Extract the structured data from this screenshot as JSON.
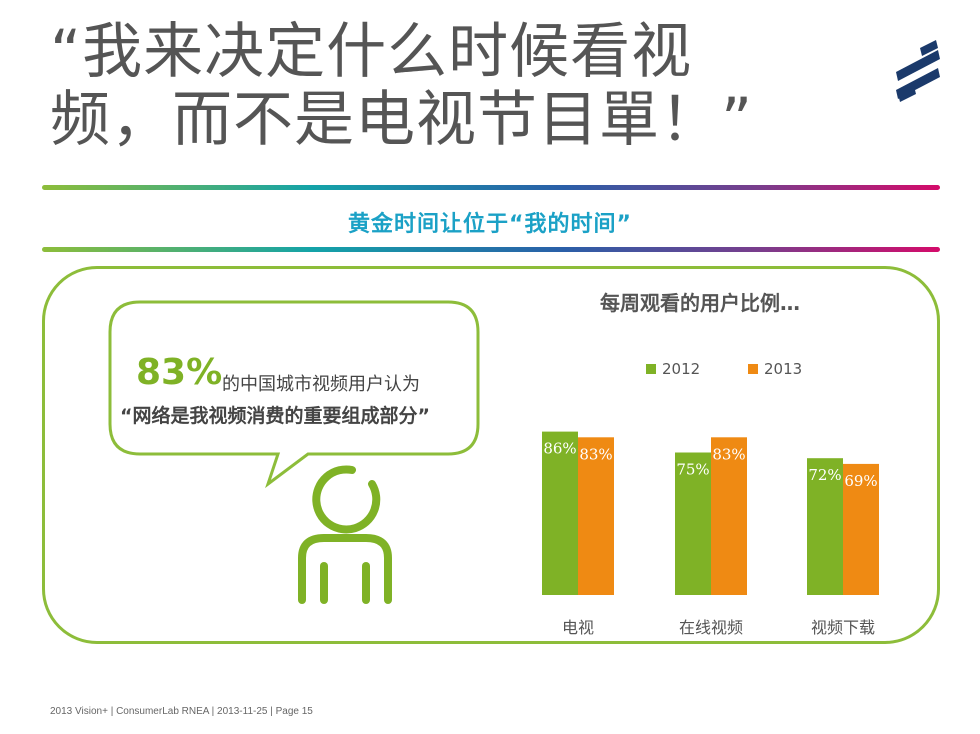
{
  "slide": {
    "title_line1": "“我来决定什么时候看视",
    "title_line2": "频，而不是电视节目單！”",
    "subtitle": "黄金时间让位于“我的时间”",
    "bubble_percent": "83%",
    "bubble_line1": "的中国城市视频用户认为",
    "bubble_line2": "“网络是我视频消费的重要组成部分”",
    "footer": "2013 Vision+  |  ConsumerLab RNEA  |  2013-11-25  |  Page 15",
    "colors": {
      "green": "#7fb226",
      "orange": "#ef8a13",
      "teal": "#1ba1c6",
      "logo": "#1b3a6b"
    }
  },
  "chart_data": {
    "type": "bar",
    "title": "每周观看的用户比例…",
    "categories": [
      "电视",
      "在线视频",
      "视频下载"
    ],
    "series": [
      {
        "name": "2012",
        "values": [
          86,
          75,
          72
        ],
        "labels": [
          "86%",
          "75%",
          "72%"
        ],
        "color": "#7fb226"
      },
      {
        "name": "2013",
        "values": [
          83,
          83,
          69
        ],
        "labels": [
          "83%",
          "83%",
          "69%"
        ],
        "color": "#ef8a13"
      }
    ],
    "ylim": [
      0,
      100
    ],
    "grid": false,
    "legend": "top"
  }
}
